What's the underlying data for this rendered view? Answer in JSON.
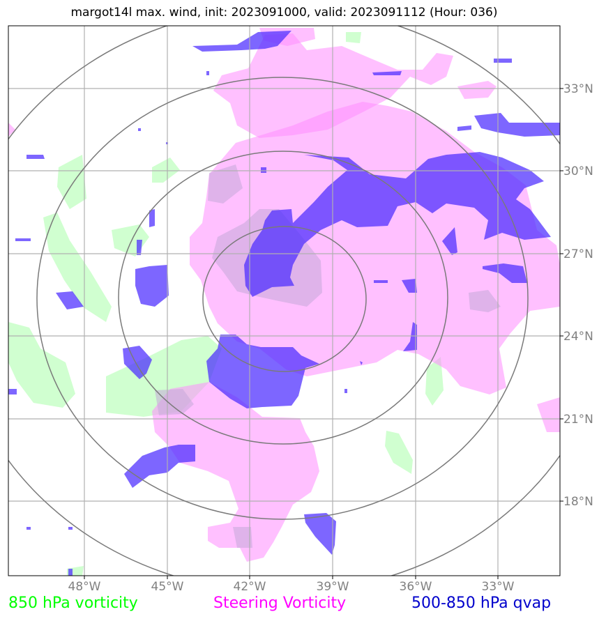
{
  "title": "margot14l max. wind, init: 2023091000, valid: 2023091112 (Hour: 036)",
  "map": {
    "lon_labels": [
      "48°W",
      "45°W",
      "42°W",
      "39°W",
      "36°W",
      "33°W"
    ],
    "lat_labels": [
      "33°N",
      "30°N",
      "27°N",
      "24°N",
      "21°N",
      "18°N"
    ],
    "range_rings": 4,
    "colors": {
      "vort850": "#c8ffc8",
      "steering": "#ff8cff",
      "qvap": "#4b2bff",
      "grid": "#b0b0b0",
      "rings": "#7a7a7a"
    }
  },
  "legend": {
    "vort850": {
      "label": "850 hPa vorticity",
      "color": "#00ff00"
    },
    "steering": {
      "label": "Steering Vorticity",
      "color": "#ff00ff"
    },
    "qvap": {
      "label": "500-850 hPa qvap",
      "color": "#0000cc"
    }
  }
}
